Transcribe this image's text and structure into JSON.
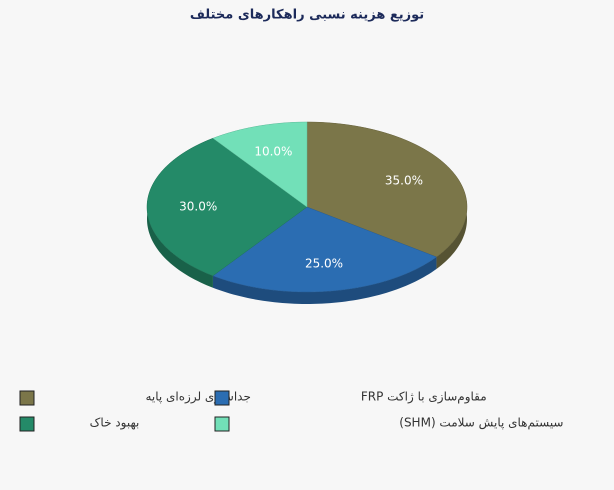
{
  "chart_data": {
    "type": "pie3d",
    "title": "توزیع هزینه نسبی راهکارهای مختلف",
    "categories": [
      "جداسازی لرزه‌ای پایه",
      "FRP مقاوم‌سازی با ژاکت",
      "بهبود خاک",
      "سیستم‌های پایش سلامت (SHM)"
    ],
    "values": [
      35,
      25,
      30,
      10
    ],
    "value_labels": [
      "35.0%",
      "25.0%",
      "30.0%",
      "10.0%"
    ],
    "colors": [
      "#7b7649",
      "#2b6db2",
      "#248a68",
      "#72e0b8"
    ]
  }
}
